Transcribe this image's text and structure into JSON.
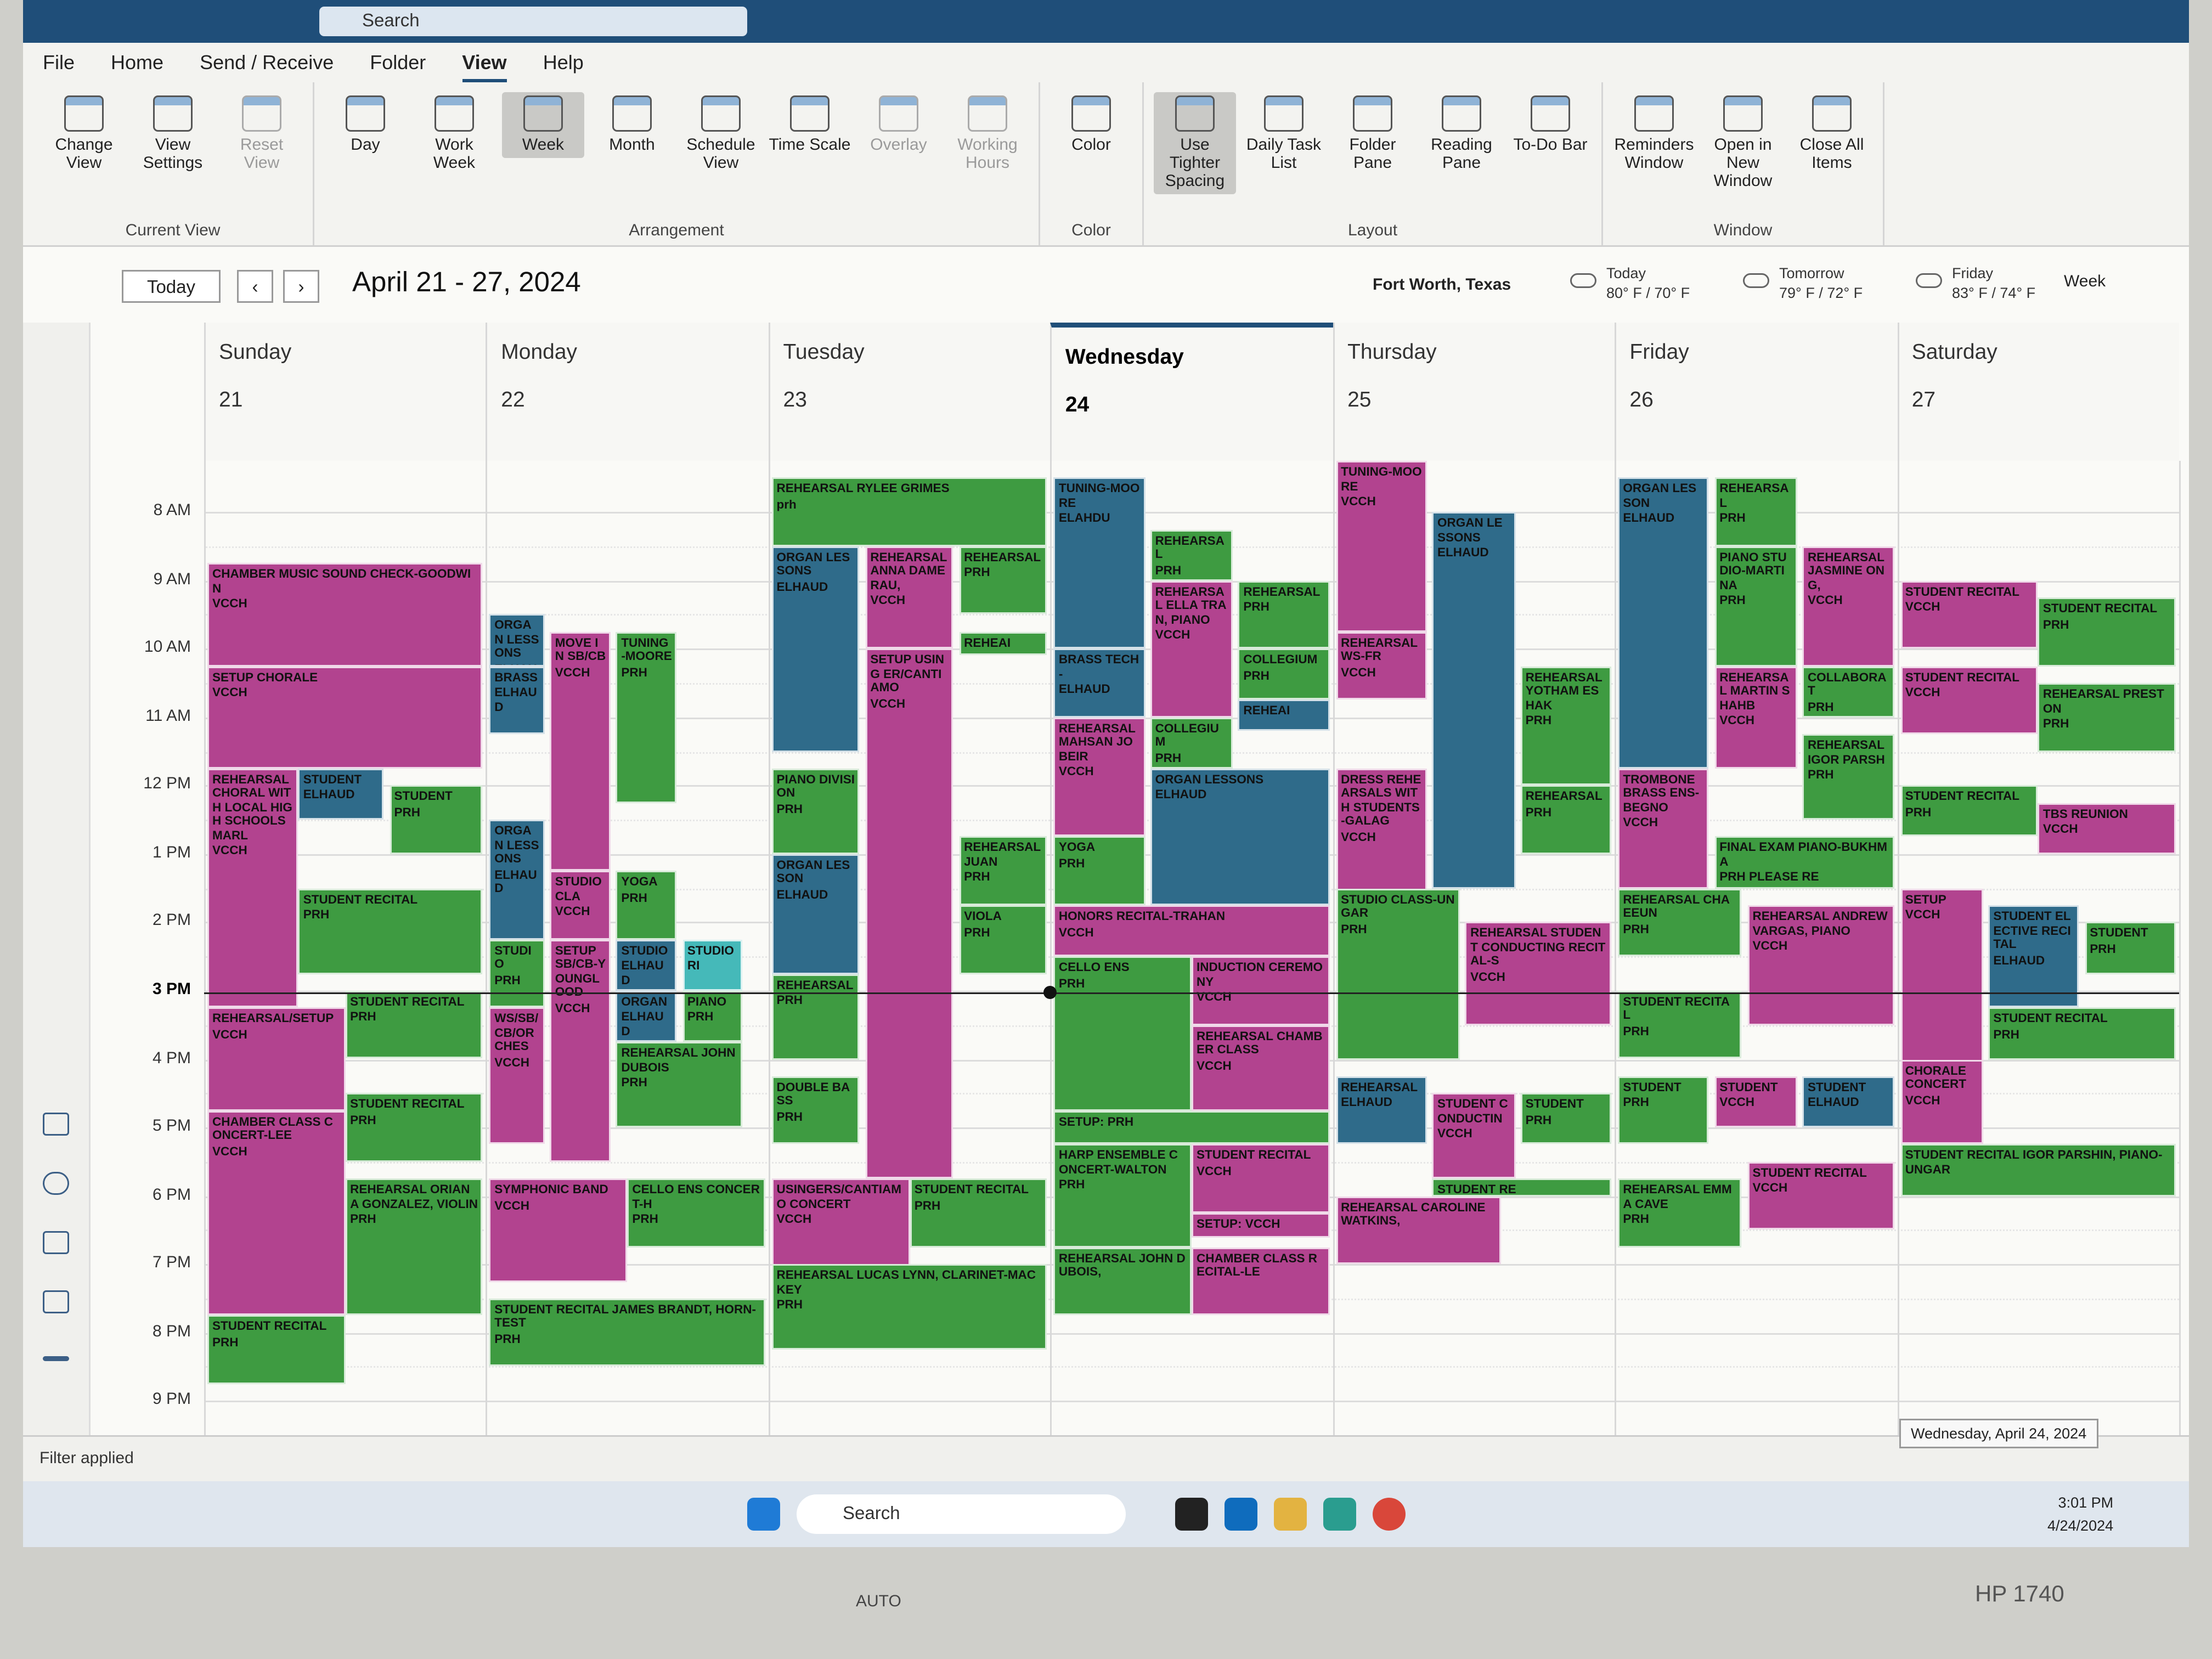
{
  "title_bar": {
    "search": "Search"
  },
  "ribbon": {
    "tabs": [
      "File",
      "Home",
      "Send / Receive",
      "Folder",
      "View",
      "Help"
    ],
    "active_tab": 4,
    "groups": [
      {
        "name": "Current View",
        "buttons": [
          {
            "label": "Change View"
          },
          {
            "label": "View Settings"
          },
          {
            "label": "Reset View",
            "disabled": true
          }
        ]
      },
      {
        "name": "Arrangement",
        "buttons": [
          {
            "label": "Day"
          },
          {
            "label": "Work Week"
          },
          {
            "label": "Week",
            "selected": true
          },
          {
            "label": "Month"
          },
          {
            "label": "Schedule View"
          },
          {
            "label": "Time Scale"
          },
          {
            "label": "Overlay",
            "disabled": true
          },
          {
            "label": "Working Hours",
            "disabled": true
          }
        ]
      },
      {
        "name": "Color",
        "buttons": [
          {
            "label": "Color"
          }
        ]
      },
      {
        "name": "Layout",
        "buttons": [
          {
            "label": "Use Tighter Spacing",
            "selected": true
          },
          {
            "label": "Daily Task List"
          },
          {
            "label": "Folder Pane"
          },
          {
            "label": "Reading Pane"
          },
          {
            "label": "To-Do Bar"
          }
        ]
      },
      {
        "name": "Window",
        "buttons": [
          {
            "label": "Reminders Window"
          },
          {
            "label": "Open in New Window"
          },
          {
            "label": "Close All Items"
          }
        ]
      }
    ]
  },
  "navigation": {
    "today": "Today",
    "range": "April 21 - 27, 2024",
    "location": "Fort Worth, Texas",
    "weather": [
      {
        "day": "Today",
        "temps": "80° F / 70° F"
      },
      {
        "day": "Tomorrow",
        "temps": "79° F / 72° F"
      },
      {
        "day": "Friday",
        "temps": "83° F / 74° F"
      }
    ],
    "view": "Week"
  },
  "calendar": {
    "times": [
      "8 AM",
      "9 AM",
      "10 AM",
      "11 AM",
      "12 PM",
      "1 PM",
      "2 PM",
      "3 PM",
      "4 PM",
      "5 PM",
      "6 PM",
      "7 PM",
      "8 PM",
      "9 PM"
    ],
    "days": [
      {
        "name": "Sunday",
        "date": "21",
        "events": [
          {
            "title": "CHAMBER MUSIC SOUND CHECK-GOODWIN",
            "location": "VCCH",
            "color": "#b2438f"
          },
          {
            "title": "SETUP CHORALE",
            "location": "VCCH",
            "color": "#b2438f"
          },
          {
            "title": "REHEARSAL CHORAL WITH LOCAL HIGH SCHOOLS MARL",
            "location": "VCCH",
            "color": "#b2438f"
          },
          {
            "title": "STUDENT",
            "location": "ELHAUD",
            "color": "#2f6b8a"
          },
          {
            "title": "STUDENT",
            "location": "PRH",
            "color": "#3e9b41"
          },
          {
            "title": "STUDENT RECITAL",
            "location": "PRH",
            "color": "#3e9b41"
          },
          {
            "title": "REHEARSAL/SETUP",
            "location": "VCCH",
            "color": "#b2438f"
          },
          {
            "title": "STUDENT RECITAL",
            "location": "PRH",
            "color": "#3e9b41"
          },
          {
            "title": "CHAMBER CLASS CONCERT-LEE",
            "location": "VCCH",
            "color": "#b2438f"
          },
          {
            "title": "STUDENT RECITAL",
            "location": "PRH",
            "color": "#3e9b41"
          },
          {
            "title": "REHEARSAL ORIANA GONZALEZ, VIOLIN",
            "location": "PRH",
            "color": "#3e9b41"
          },
          {
            "title": "STUDENT RECITAL",
            "location": "PRH",
            "color": "#3e9b41"
          }
        ]
      },
      {
        "name": "Monday",
        "date": "22",
        "events": [
          {
            "title": "ORGAN LESSONS",
            "location": "ELHAUD",
            "color": "#2f6b8a"
          },
          {
            "title": "BRASS",
            "location": "ELHAUD",
            "color": "#2f6b8a"
          },
          {
            "title": "ORGAN LESSONS",
            "location": "ELHAUD",
            "color": "#2f6b8a"
          },
          {
            "title": "STUDIO",
            "location": "PRH",
            "color": "#3e9b41"
          },
          {
            "title": "WS/SB/CB/ORCHES",
            "location": "VCCH",
            "color": "#b2438f"
          },
          {
            "title": "MOVE IN SB/CB",
            "location": "VCCH",
            "color": "#b2438f"
          },
          {
            "title": "STUDIO CLA",
            "location": "VCCH",
            "color": "#b2438f"
          },
          {
            "title": "SETUP SB/CB-YOUNGLOOD",
            "location": "VCCH",
            "color": "#b2438f"
          },
          {
            "title": "TUNING-MOORE",
            "location": "PRH",
            "color": "#3e9b41"
          },
          {
            "title": "YOGA",
            "location": "PRH",
            "color": "#3e9b41"
          },
          {
            "title": "STUDIO",
            "location": "ELHAUD",
            "color": "#2f6b8a"
          },
          {
            "title": "ORGAN",
            "location": "ELHAUD",
            "color": "#2f6b8a"
          },
          {
            "title": "STUDIO",
            "location": "RI",
            "color": "#45b9b9"
          },
          {
            "title": "PIANO",
            "location": "PRH",
            "color": "#3e9b41"
          },
          {
            "title": "REHEARSAL JOHN DUBOIS",
            "location": "PRH",
            "color": "#3e9b41"
          },
          {
            "title": "SYMPHONIC BAND",
            "location": "VCCH",
            "color": "#b2438f"
          },
          {
            "title": "CELLO ENS CONCERT-H",
            "location": "PRH",
            "color": "#3e9b41"
          },
          {
            "title": "STUDENT RECITAL JAMES BRANDT, HORN-TEST",
            "location": "PRH",
            "color": "#3e9b41"
          }
        ]
      },
      {
        "name": "Tuesday",
        "date": "23",
        "events": [
          {
            "title": "REHEARSAL RYLEE GRIMES",
            "location": "prh",
            "color": "#3e9b41"
          },
          {
            "title": "ORGAN LESSONS",
            "location": "ELHAUD",
            "color": "#2f6b8a"
          },
          {
            "title": "REHEARSAL ANNA DAMERAU,",
            "location": "VCCH",
            "color": "#b2438f"
          },
          {
            "title": "REHEARSAL",
            "location": "PRH",
            "color": "#3e9b41"
          },
          {
            "title": "REHEAI",
            "location": "",
            "color": "#3e9b41"
          },
          {
            "title": "SETUP USING ER/CANTIAMO",
            "location": "VCCH",
            "color": "#b2438f"
          },
          {
            "title": "PIANO DIVISION",
            "location": "PRH",
            "color": "#3e9b41"
          },
          {
            "title": "ORGAN LESSON",
            "location": "ELHAUD",
            "color": "#2f6b8a"
          },
          {
            "title": "REHEARSAL JUAN",
            "location": "PRH",
            "color": "#3e9b41"
          },
          {
            "title": "VIOLA",
            "location": "PRH",
            "color": "#3e9b41"
          },
          {
            "title": "REHEARSAL",
            "location": "PRH",
            "color": "#3e9b41"
          },
          {
            "title": "DOUBLE BASS",
            "location": "PRH",
            "color": "#3e9b41"
          },
          {
            "title": "USINGERS/CANTIAMO CONCERT",
            "location": "VCCH",
            "color": "#b2438f"
          },
          {
            "title": "STUDENT RECITAL",
            "location": "PRH",
            "color": "#3e9b41"
          },
          {
            "title": "REHEARSAL LUCAS LYNN, CLARINET-MACKEY",
            "location": "PRH",
            "color": "#3e9b41"
          }
        ]
      },
      {
        "name": "Wednesday",
        "date": "24",
        "today": true,
        "events": [
          {
            "title": "TUNING-MOORE",
            "location": "ELAHDU",
            "color": "#2f6b8a"
          },
          {
            "title": "BRASS TECH-",
            "location": "ELHAUD",
            "color": "#2f6b8a"
          },
          {
            "title": "REHEARSAL MAHSAN JOBEIR",
            "location": "VCCH",
            "color": "#b2438f"
          },
          {
            "title": "YOGA",
            "location": "PRH",
            "color": "#3e9b41"
          },
          {
            "title": "REHEARSAL",
            "location": "PRH",
            "color": "#3e9b41"
          },
          {
            "title": "REHEARSAL ELLA TRAN, PIANO",
            "location": "VCCH",
            "color": "#b2438f"
          },
          {
            "title": "REHEARSAL",
            "location": "PRH",
            "color": "#3e9b41"
          },
          {
            "title": "COLLEGIUM",
            "location": "PRH",
            "color": "#3e9b41"
          },
          {
            "title": "REHEAI",
            "location": "",
            "color": "#2f6b8a"
          },
          {
            "title": "COLLEGIUM",
            "location": "PRH",
            "color": "#3e9b41"
          },
          {
            "title": "ORGAN LESSONS",
            "location": "ELHAUD",
            "color": "#2f6b8a"
          },
          {
            "title": "HONORS RECITAL-TRAHAN",
            "location": "VCCH",
            "color": "#b2438f"
          },
          {
            "title": "CELLO ENS",
            "location": "PRH",
            "color": "#3e9b41"
          },
          {
            "title": "INDUCTION CEREMONY",
            "location": "VCCH",
            "color": "#b2438f"
          },
          {
            "title": "REHEARSAL CHAMBER CLASS",
            "location": "VCCH",
            "color": "#b2438f"
          },
          {
            "title": "SETUP: PRH",
            "location": "",
            "color": "#3e9b41"
          },
          {
            "title": "HARP ENSEMBLE CONCERT-WALTON",
            "location": "PRH",
            "color": "#3e9b41"
          },
          {
            "title": "STUDENT RECITAL",
            "location": "VCCH",
            "color": "#b2438f"
          },
          {
            "title": "SETUP: VCCH",
            "location": "",
            "color": "#b2438f"
          },
          {
            "title": "REHEARSAL JOHN DUBOIS,",
            "location": "",
            "color": "#3e9b41"
          },
          {
            "title": "CHAMBER CLASS RECITAL-LE",
            "location": "",
            "color": "#b2438f"
          }
        ]
      },
      {
        "name": "Thursday",
        "date": "25",
        "events": [
          {
            "title": "TUNING-MOORE",
            "location": "VCCH",
            "color": "#b2438f"
          },
          {
            "title": "ORGAN LESSONS",
            "location": "ELHAUD",
            "color": "#2f6b8a"
          },
          {
            "title": "REHEARSAL WS-FR",
            "location": "VCCH",
            "color": "#b2438f"
          },
          {
            "title": "DRESS REHEARSALS WITH STUDENTS-GALAG",
            "location": "VCCH",
            "color": "#b2438f"
          },
          {
            "title": "REHEARSAL YOTHAM ESHAK",
            "location": "PRH",
            "color": "#3e9b41"
          },
          {
            "title": "REHEARSAL",
            "location": "PRH",
            "color": "#3e9b41"
          },
          {
            "title": "STUDIO CLASS-UNGAR",
            "location": "PRH",
            "color": "#3e9b41"
          },
          {
            "title": "REHEARSAL STUDENT CONDUCTING RECITAL-S",
            "location": "VCCH",
            "color": "#b2438f"
          },
          {
            "title": "REHEARSAL",
            "location": "ELHAUD",
            "color": "#2f6b8a"
          },
          {
            "title": "STUDENT CONDUCTIN",
            "location": "VCCH",
            "color": "#b2438f"
          },
          {
            "title": "STUDENT",
            "location": "PRH",
            "color": "#3e9b41"
          },
          {
            "title": "STUDENT RE",
            "location": "",
            "color": "#3e9b41"
          },
          {
            "title": "REHEARSAL CAROLINE WATKINS,",
            "location": "",
            "color": "#b2438f"
          }
        ]
      },
      {
        "name": "Friday",
        "date": "26",
        "events": [
          {
            "title": "ORGAN LESSON",
            "location": "ELHAUD",
            "color": "#2f6b8a"
          },
          {
            "title": "REHEARSAL",
            "location": "PRH",
            "color": "#3e9b41"
          },
          {
            "title": "PIANO STUDIO-MARTINA",
            "location": "PRH",
            "color": "#3e9b41"
          },
          {
            "title": "REHEARSAL JASMINE ONG,",
            "location": "VCCH",
            "color": "#b2438f"
          },
          {
            "title": "REHEARSAL MARTIN SHAHB",
            "location": "VCCH",
            "color": "#b2438f"
          },
          {
            "title": "COLLABORAT",
            "location": "PRH",
            "color": "#3e9b41"
          },
          {
            "title": "REHEARSAL IGOR PARSH",
            "location": "PRH",
            "color": "#3e9b41"
          },
          {
            "title": "TROMBONE BRASS ENS-BEGNO",
            "location": "VCCH",
            "color": "#b2438f"
          },
          {
            "title": "FINAL EXAM PIANO-BUKHMA",
            "location": "PRH PLEASE RE",
            "color": "#3e9b41"
          },
          {
            "title": "REHEARSAL CHAEEUN",
            "location": "PRH",
            "color": "#3e9b41"
          },
          {
            "title": "REHEARSAL ANDREW VARGAS, PIANO",
            "location": "VCCH",
            "color": "#b2438f"
          },
          {
            "title": "STUDENT RECITAL",
            "location": "PRH",
            "color": "#3e9b41"
          },
          {
            "title": "STUDENT",
            "location": "PRH",
            "color": "#3e9b41"
          },
          {
            "title": "STUDENT",
            "location": "VCCH",
            "color": "#b2438f"
          },
          {
            "title": "STUDENT",
            "location": "ELHAUD",
            "color": "#2f6b8a"
          },
          {
            "title": "REHEARSAL EMMA CAVE",
            "location": "PRH",
            "color": "#3e9b41"
          },
          {
            "title": "STUDENT RECITAL",
            "location": "VCCH",
            "color": "#b2438f"
          }
        ]
      },
      {
        "name": "Saturday",
        "date": "27",
        "events": [
          {
            "title": "STUDENT RECITAL",
            "location": "VCCH",
            "color": "#b2438f"
          },
          {
            "title": "STUDENT RECITAL",
            "location": "PRH",
            "color": "#3e9b41"
          },
          {
            "title": "STUDENT RECITAL",
            "location": "VCCH",
            "color": "#b2438f"
          },
          {
            "title": "REHEARSAL PRESTON",
            "location": "PRH",
            "color": "#3e9b41"
          },
          {
            "title": "STUDENT RECITAL",
            "location": "PRH",
            "color": "#3e9b41"
          },
          {
            "title": "TBS REUNION",
            "location": "VCCH",
            "color": "#b2438f"
          },
          {
            "title": "SETUP",
            "location": "VCCH",
            "color": "#b2438f"
          },
          {
            "title": "STUDENT ELECTIVE RECITAL",
            "location": "ELHAUD",
            "color": "#2f6b8a"
          },
          {
            "title": "STUDENT",
            "location": "PRH",
            "color": "#3e9b41"
          },
          {
            "title": "STUDENT RECITAL",
            "location": "PRH",
            "color": "#3e9b41"
          },
          {
            "title": "CHORALE CONCERT",
            "location": "VCCH",
            "color": "#b2438f"
          },
          {
            "title": "STUDENT RECITAL IGOR PARSHIN, PIANO-UNGAR",
            "location": "",
            "color": "#3e9b41"
          }
        ]
      }
    ]
  },
  "status_bar": {
    "text": "Filter applied"
  },
  "taskbar": {
    "search": "Search",
    "time": "3:01 PM",
    "date": "4/24/2024",
    "tooltip": "Wednesday, April 24, 2024"
  },
  "monitor": {
    "button": "AUTO",
    "model": "HP 1740"
  }
}
